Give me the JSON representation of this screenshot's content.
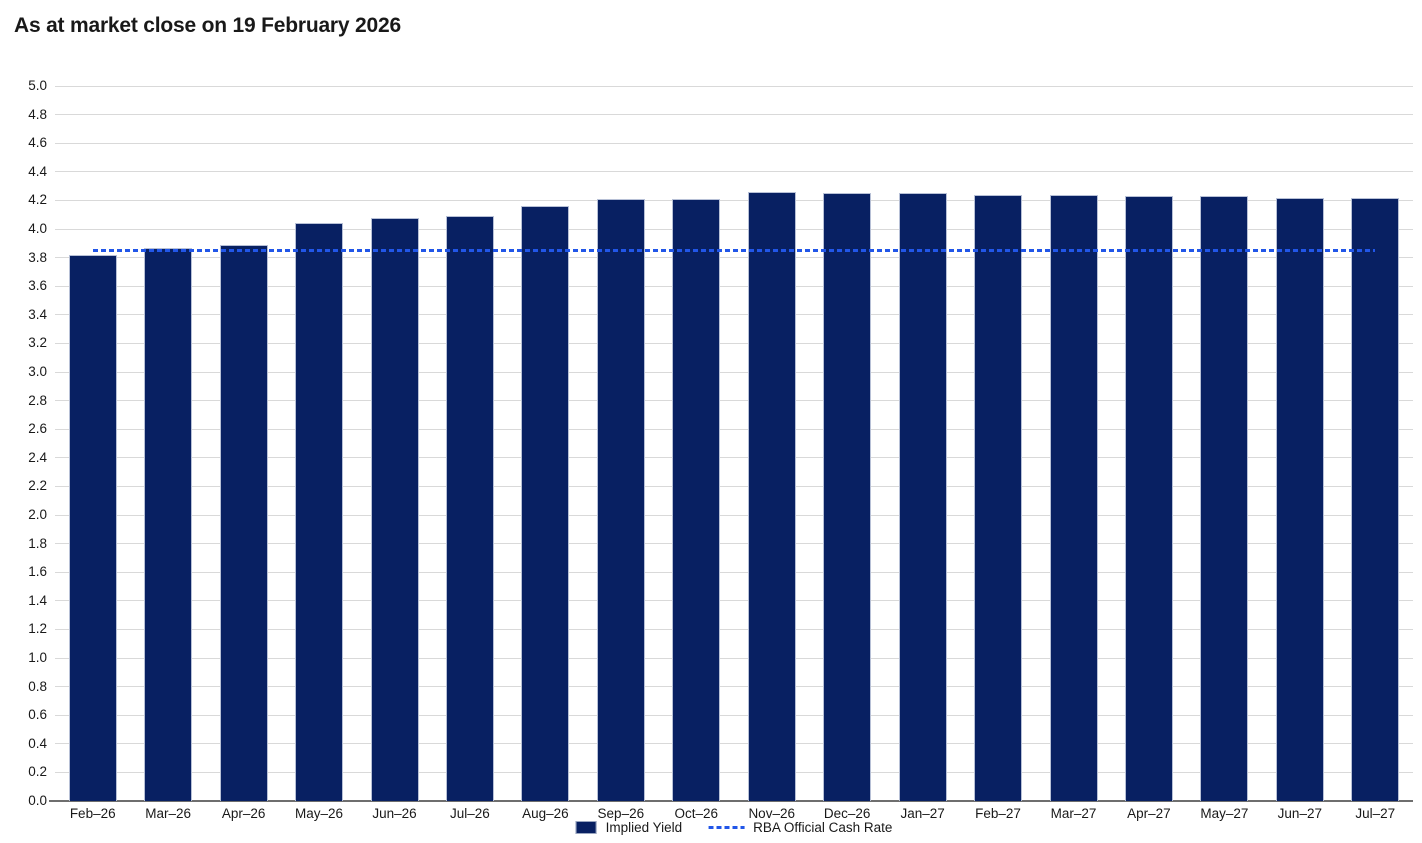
{
  "title": "As at market close on 19 February 2026",
  "chart_data": {
    "type": "bar",
    "title": "As at market close on 19 February 2026",
    "categories": [
      "Feb–26",
      "Mar–26",
      "Apr–26",
      "May–26",
      "Jun–26",
      "Jul–26",
      "Aug–26",
      "Sep–26",
      "Oct–26",
      "Nov–26",
      "Dec–26",
      "Jan–27",
      "Feb–27",
      "Mar–27",
      "Apr–27",
      "May–27",
      "Jun–27",
      "Jul–27"
    ],
    "series": [
      {
        "name": "Implied Yield",
        "type": "bar",
        "color": "#082062",
        "values": [
          3.82,
          3.87,
          3.89,
          4.04,
          4.08,
          4.09,
          4.16,
          4.21,
          4.21,
          4.26,
          4.25,
          4.25,
          4.24,
          4.24,
          4.23,
          4.23,
          4.22,
          4.22
        ]
      },
      {
        "name": "RBA Official Cash Rate",
        "type": "dashed-line",
        "color": "#2156e8",
        "value": 3.85
      }
    ],
    "xlabel": "",
    "ylabel": "",
    "ylim": [
      0.0,
      5.0
    ],
    "ytick_step": 0.2,
    "grid": true,
    "legend_position": "bottom-center"
  }
}
